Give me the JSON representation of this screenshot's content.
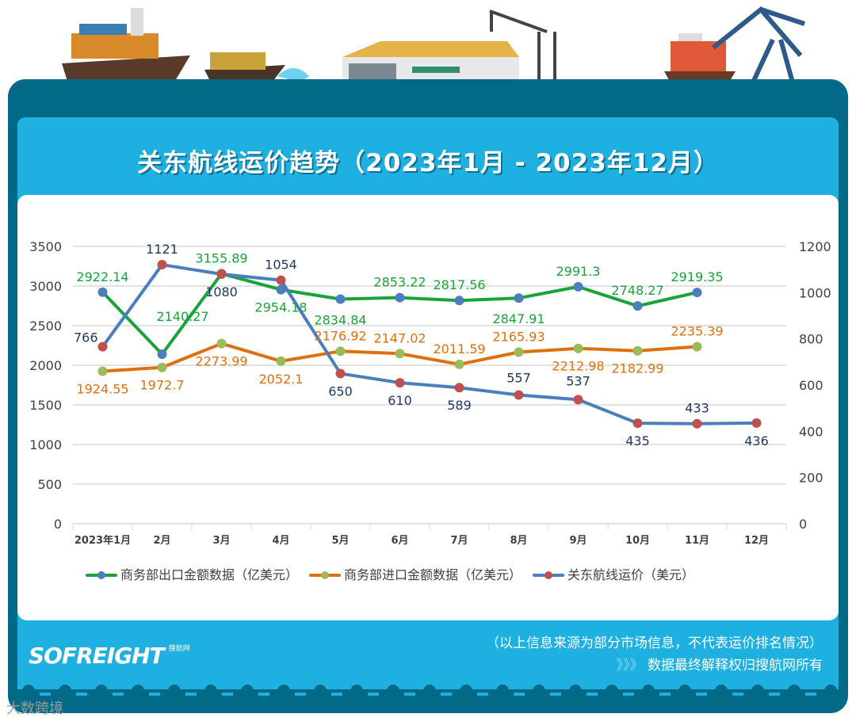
{
  "title": "关东航线运价趋势（2023年1月 - 2023年12月）",
  "footer": {
    "disclaimer": "（以上信息来源为部分市场信息，不代表运价排名情况）",
    "chevrons": "》》》",
    "rights": "数据最终解释权归搜航网所有",
    "logo": "SOFREIGHT",
    "logo_sub": "搜航网",
    "watermark": "大数跨境"
  },
  "colors": {
    "frame": "#026a86",
    "panel": "#1eb0e0",
    "export_line": "#1aa33a",
    "export_marker": "#4a7ebf",
    "import_line": "#e0700f",
    "import_marker": "#9bbb59",
    "freight_line": "#4a7ebf",
    "freight_marker": "#c0504d",
    "freight_label": "#1f3864"
  },
  "chart_data": {
    "type": "line",
    "categories": [
      "2023年1月",
      "2月",
      "3月",
      "4月",
      "5月",
      "6月",
      "7月",
      "8月",
      "9月",
      "10月",
      "11月",
      "12月"
    ],
    "y_left": {
      "range": [
        0,
        3500
      ],
      "ticks": [
        "0",
        "500",
        "1000",
        "1500",
        "2000",
        "2500",
        "3000",
        "3500"
      ]
    },
    "y_right": {
      "range": [
        0,
        1200
      ],
      "ticks": [
        "0",
        "200",
        "400",
        "600",
        "800",
        "1000",
        "1200"
      ]
    },
    "grid": true,
    "legend_position": "bottom",
    "series": [
      {
        "name": "商务部出口金额数据（亿美元）",
        "axis": "left",
        "values": [
          2922.14,
          2140.27,
          3155.89,
          2954.18,
          2834.84,
          2853.22,
          2817.56,
          2847.91,
          2991.3,
          2748.27,
          2919.35,
          null
        ],
        "labels": [
          "2922.14",
          "2140.27",
          "3155.89",
          "2954.18",
          "2834.84",
          "2853.22",
          "2817.56",
          "2847.91",
          "2991.3",
          "2748.27",
          "2919.35",
          ""
        ]
      },
      {
        "name": "商务部进口金额数据（亿美元）",
        "axis": "left",
        "values": [
          1924.55,
          1972.7,
          2273.99,
          2052.1,
          2176.92,
          2147.02,
          2011.59,
          2165.93,
          2212.98,
          2182.99,
          2235.39,
          null
        ],
        "labels": [
          "1924.55",
          "1972.7",
          "2273.99",
          "2052.1",
          "2176.92",
          "2147.02",
          "2011.59",
          "2165.93",
          "2212.98",
          "2182.99",
          "2235.39",
          ""
        ]
      },
      {
        "name": "关东航线运价（美元）",
        "axis": "right",
        "values": [
          766,
          1121,
          1080,
          1054,
          650,
          610,
          589,
          557,
          537,
          435,
          433,
          436
        ],
        "labels": [
          "766",
          "1121",
          "1080",
          "1054",
          "650",
          "610",
          "589",
          "557",
          "537",
          "435",
          "433",
          "436"
        ]
      }
    ]
  }
}
